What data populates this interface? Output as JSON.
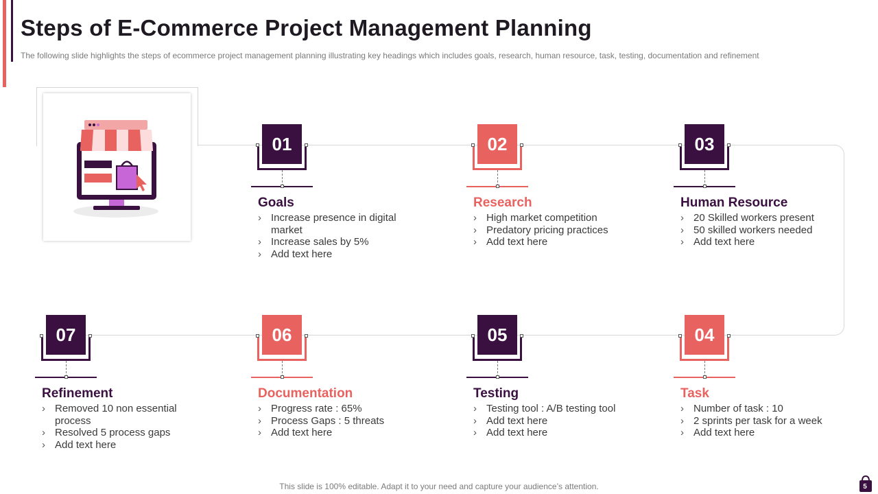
{
  "header": {
    "title": "Steps of E-Commerce Project Management Planning",
    "subtitle": "The following slide highlights the steps of ecommerce project management planning illustrating key headings which includes goals, research, human resource, task, testing, documentation and refinement"
  },
  "illustration": {
    "icon": "online-store-icon"
  },
  "colors": {
    "dark": "#3a1040",
    "coral": "#e8625f",
    "store_purple": "#c766d6"
  },
  "steps": [
    {
      "number": "01",
      "title": "Goals",
      "theme": "dark",
      "bullets": [
        "Increase presence in digital market",
        "Increase sales by 5%",
        "Add text here"
      ]
    },
    {
      "number": "02",
      "title": "Research",
      "theme": "coral",
      "bullets": [
        "High market competition",
        "Predatory pricing practices",
        "Add text here"
      ]
    },
    {
      "number": "03",
      "title": "Human Resource",
      "theme": "dark",
      "bullets": [
        "20 Skilled workers present",
        "50 skilled workers needed",
        "Add text here"
      ]
    },
    {
      "number": "04",
      "title": "Task",
      "theme": "coral",
      "bullets": [
        "Number of task : 10",
        "2 sprints per task for a week",
        "Add text here"
      ]
    },
    {
      "number": "05",
      "title": "Testing",
      "theme": "dark",
      "bullets": [
        "Testing tool : A/B testing tool",
        "Add text here",
        "Add text here"
      ]
    },
    {
      "number": "06",
      "title": "Documentation",
      "theme": "coral",
      "bullets": [
        "Progress rate : 65%",
        "Process Gaps : 5 threats",
        "Add text here"
      ]
    },
    {
      "number": "07",
      "title": "Refinement",
      "theme": "dark",
      "bullets": [
        "Removed 10 non essential process",
        "Resolved 5 process gaps",
        "Add text here"
      ]
    }
  ],
  "footer": {
    "text": "This slide is 100% editable. Adapt it to your need and capture your audience’s attention.",
    "page_number": "5"
  }
}
